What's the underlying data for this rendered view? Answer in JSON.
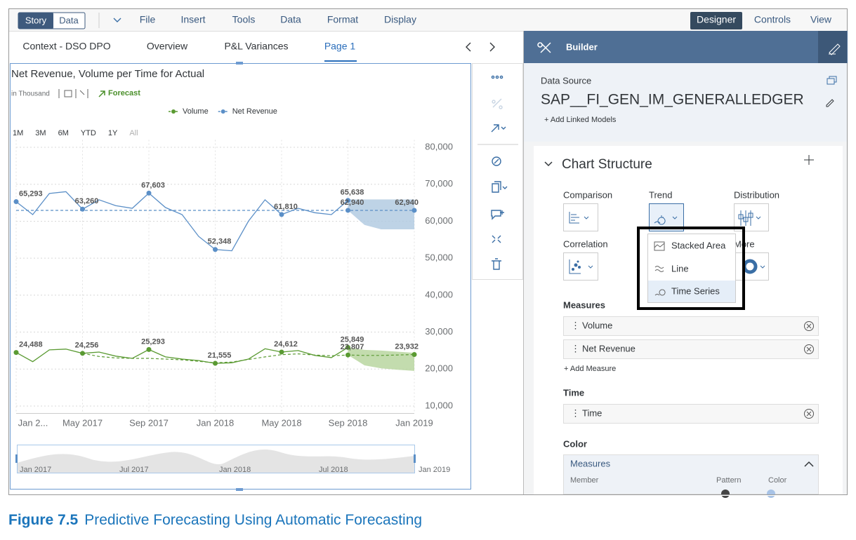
{
  "toolbar": {
    "story": "Story",
    "data": "Data",
    "menus": [
      "File",
      "Insert",
      "Tools",
      "Data",
      "Format",
      "Display"
    ],
    "right": [
      "Designer",
      "Controls",
      "View"
    ]
  },
  "tabs": [
    "Context - DSO DPO",
    "Overview",
    "P&L Variances",
    "Page 1"
  ],
  "chart_data": {
    "type": "line",
    "title": "Net Revenue, Volume per Time for Actual",
    "subtitle": "in Thousand",
    "forecast_label": "Forecast",
    "time_buttons": [
      "1M",
      "3M",
      "6M",
      "YTD",
      "1Y",
      "All"
    ],
    "categories": [
      "Jan 2...",
      null,
      null,
      null,
      "May 2017",
      null,
      null,
      null,
      "Sep 2017",
      null,
      null,
      null,
      "Jan 2018",
      null,
      null,
      null,
      "May 2018",
      null,
      null,
      null,
      "Sep 2018",
      null,
      null,
      null,
      "Jan 2019"
    ],
    "ylim": [
      8000,
      82000
    ],
    "yticks": [
      {
        "value": 10000,
        "label": "10,000"
      },
      {
        "value": 20000,
        "label": "20,000"
      },
      {
        "value": 30000,
        "label": "30,000"
      },
      {
        "value": 40000,
        "label": "40,000"
      },
      {
        "value": 50000,
        "label": "50,000"
      },
      {
        "value": 60000,
        "label": "60,000"
      },
      {
        "value": 70000,
        "label": "70,000"
      },
      {
        "value": 80000,
        "label": "80,000"
      }
    ],
    "grid": true,
    "series": [
      {
        "name": "Volume",
        "color": "#5a9a32",
        "band_color": "#b9d6a0",
        "values": [
          24488,
          22000,
          25200,
          25400,
          24256,
          24600,
          23500,
          22900,
          25293,
          23300,
          22700,
          22300,
          21555,
          21700,
          22700,
          25500,
          24612,
          25000,
          23700,
          23100,
          25849,
          null,
          null,
          null,
          null
        ],
        "value_labels": [
          "24,488",
          null,
          null,
          null,
          "24,256",
          null,
          null,
          null,
          "25,293",
          null,
          null,
          null,
          "21,555",
          null,
          null,
          null,
          "24,612",
          null,
          null,
          null,
          "25,849",
          null,
          null,
          null,
          null
        ],
        "forecast": {
          "values": [
            null,
            null,
            null,
            null,
            24256,
            23400,
            23000,
            22900,
            22900,
            22700,
            22500,
            22100,
            21700,
            21900,
            22600,
            23300,
            23900,
            24100,
            23800,
            23600,
            23807,
            23700,
            23700,
            23800,
            23932
          ],
          "value_labels": [
            null,
            null,
            null,
            null,
            null,
            null,
            null,
            null,
            null,
            null,
            null,
            null,
            null,
            null,
            null,
            null,
            null,
            null,
            null,
            null,
            "23,807",
            null,
            null,
            null,
            "23,932"
          ],
          "upper": [
            null,
            null,
            null,
            null,
            null,
            null,
            null,
            null,
            null,
            null,
            null,
            null,
            null,
            null,
            null,
            null,
            null,
            null,
            null,
            null,
            25849,
            25200,
            25000,
            24700,
            24400
          ],
          "lower": [
            null,
            null,
            null,
            null,
            null,
            null,
            null,
            null,
            null,
            null,
            null,
            null,
            null,
            null,
            null,
            null,
            null,
            null,
            null,
            null,
            23807,
            21000,
            20200,
            19800,
            19500
          ]
        }
      },
      {
        "name": "Net Revenue",
        "color": "#5b8fc7",
        "band_color": "#b3cbe2",
        "values": [
          65293,
          61800,
          67500,
          68000,
          63260,
          65800,
          64200,
          63500,
          67603,
          63700,
          61800,
          55900,
          52348,
          52000,
          60000,
          65800,
          61810,
          63500,
          62300,
          61800,
          65638,
          null,
          null,
          null,
          null
        ],
        "value_labels": [
          "65,293",
          null,
          null,
          null,
          "63,260",
          null,
          null,
          null,
          "67,603",
          null,
          null,
          null,
          "52,348",
          null,
          null,
          null,
          "61,810",
          null,
          null,
          null,
          "65,638",
          null,
          null,
          null,
          null
        ],
        "forecast": {
          "values": [
            62940,
            62940,
            62940,
            62940,
            62940,
            62940,
            62940,
            62940,
            62940,
            62940,
            62940,
            62940,
            62940,
            62940,
            62940,
            62940,
            62940,
            62940,
            62940,
            62940,
            62940,
            62940,
            62940,
            62940,
            62940
          ],
          "value_labels": [
            null,
            null,
            null,
            null,
            null,
            null,
            null,
            null,
            null,
            null,
            null,
            null,
            null,
            null,
            null,
            null,
            null,
            null,
            null,
            null,
            "62,940",
            null,
            null,
            null,
            "62,940"
          ],
          "upper": [
            null,
            null,
            null,
            null,
            null,
            null,
            null,
            null,
            null,
            null,
            null,
            null,
            null,
            null,
            null,
            null,
            null,
            null,
            null,
            null,
            65900,
            65900,
            65900,
            65900,
            65900
          ],
          "lower": [
            null,
            null,
            null,
            null,
            null,
            null,
            null,
            null,
            null,
            null,
            null,
            null,
            null,
            null,
            null,
            null,
            null,
            null,
            null,
            null,
            62940,
            59000,
            57800,
            57800,
            57800
          ]
        }
      }
    ],
    "navigator_labels": [
      "Jan 2017",
      "Jul 2017",
      "Jan 2018",
      "Jul 2018",
      "Jan 2019"
    ]
  },
  "builder": {
    "header": "Builder",
    "data_source_label": "Data Source",
    "data_source": "SAP__FI_GEN_IM_GENERALLEDGER",
    "add_linked": "+ Add Linked Models",
    "section": "Chart Structure",
    "types": [
      "Comparison",
      "Trend",
      "Distribution",
      "Correlation",
      "More"
    ],
    "dropdown": [
      "Stacked Area",
      "Line",
      "Time Series"
    ],
    "measures_label": "Measures",
    "measures": [
      "Volume",
      "Net Revenue"
    ],
    "add_measure": "+ Add Measure",
    "time_label": "Time",
    "time": "Time",
    "color_label": "Color",
    "color_panel": {
      "title": "Measures",
      "member": "Member",
      "pattern": "Pattern",
      "color": "Color"
    }
  },
  "caption": {
    "figure": "Figure 7.5",
    "text": "Predictive Forecasting Using Automatic Forecasting"
  }
}
